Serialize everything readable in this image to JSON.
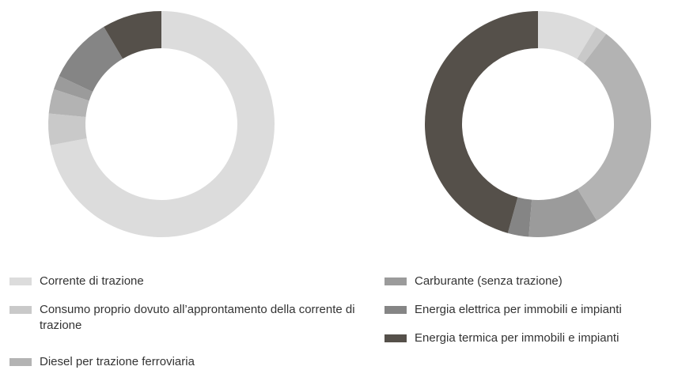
{
  "chart_data": [
    {
      "type": "pie",
      "values": [
        72,
        4.5,
        3.5,
        2,
        9.5,
        8.5
      ]
    },
    {
      "type": "pie",
      "values": [
        8.6,
        1.7,
        31,
        10,
        3,
        45.7
      ]
    }
  ],
  "legend": {
    "items": [
      {
        "name": "Corrente di trazione",
        "color": "#dcdcdc"
      },
      {
        "name": "Consumo proprio dovuto all’approntamento della corrente di trazione",
        "color": "#c9c9c9"
      },
      {
        "name": "Diesel per trazione ferroviaria",
        "color": "#b3b3b3"
      },
      {
        "name": "Carburante (senza trazione)",
        "color": "#9b9b9b"
      },
      {
        "name": "Energia elettrica per immobili e impianti",
        "color": "#858585"
      },
      {
        "name": "Energia termica per immobili e impianti",
        "color": "#55504a"
      }
    ]
  }
}
